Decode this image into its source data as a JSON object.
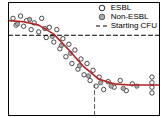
{
  "chart_data": {
    "type": "scatter",
    "xlim": [
      0,
      10
    ],
    "ylim": [
      0,
      10
    ],
    "tick_labels": false,
    "legend": "top-right",
    "series": [
      {
        "name": "ESBL",
        "type": "scatter",
        "marker": "open-circle",
        "color": "#000000",
        "x": [
          0.3,
          0.5,
          0.8,
          1.0,
          1.2,
          1.5,
          1.7,
          2.0,
          2.2,
          2.5,
          2.7,
          3.0,
          3.2,
          3.4,
          3.6,
          3.8,
          4.0,
          4.2,
          4.4,
          4.6,
          4.8,
          5.0,
          5.2,
          5.4,
          5.6,
          5.8,
          6.0,
          6.3,
          6.6,
          7.0,
          7.4,
          7.8,
          8.2,
          9.5,
          9.5,
          9.5,
          9.5
        ],
        "values": [
          8.6,
          8.0,
          8.8,
          7.9,
          8.4,
          7.6,
          8.2,
          7.4,
          8.6,
          6.9,
          7.8,
          6.5,
          7.6,
          5.9,
          6.8,
          5.2,
          6.3,
          4.6,
          5.8,
          4.1,
          5.0,
          3.6,
          4.6,
          3.1,
          4.0,
          2.6,
          3.4,
          2.3,
          3.0,
          2.5,
          3.1,
          2.2,
          2.8,
          3.4,
          2.9,
          2.5,
          2.0
        ]
      },
      {
        "name": "Non-ESBL",
        "type": "scatter",
        "marker": "filled-circle",
        "color": "#aaaaaa",
        "x": [
          0.6,
          1.4,
          2.4,
          2.9,
          3.5,
          4.1,
          4.7,
          5.3,
          6.1,
          6.8,
          7.6,
          8.5
        ],
        "values": [
          8.1,
          8.5,
          7.7,
          7.0,
          6.2,
          5.5,
          4.4,
          3.5,
          2.9,
          2.6,
          2.4,
          2.6
        ]
      },
      {
        "name": "Starting CFU",
        "type": "line",
        "line_style": "dashed",
        "color": "#000000",
        "x": [
          0,
          10
        ],
        "values": [
          7.1,
          7.1
        ]
      },
      {
        "type": "line",
        "line_style": "solid",
        "color": "#b22222",
        "x": [
          0,
          1,
          2,
          3,
          4,
          5,
          6,
          7,
          8,
          9,
          10
        ],
        "values": [
          8.4,
          8.3,
          8.0,
          7.2,
          5.8,
          4.3,
          3.2,
          2.8,
          2.7,
          2.7,
          2.7
        ]
      },
      {
        "type": "line",
        "line_style": "dashed",
        "color": "#555555",
        "x": [
          5.7,
          5.7
        ],
        "values": [
          0,
          2.7
        ]
      }
    ]
  }
}
